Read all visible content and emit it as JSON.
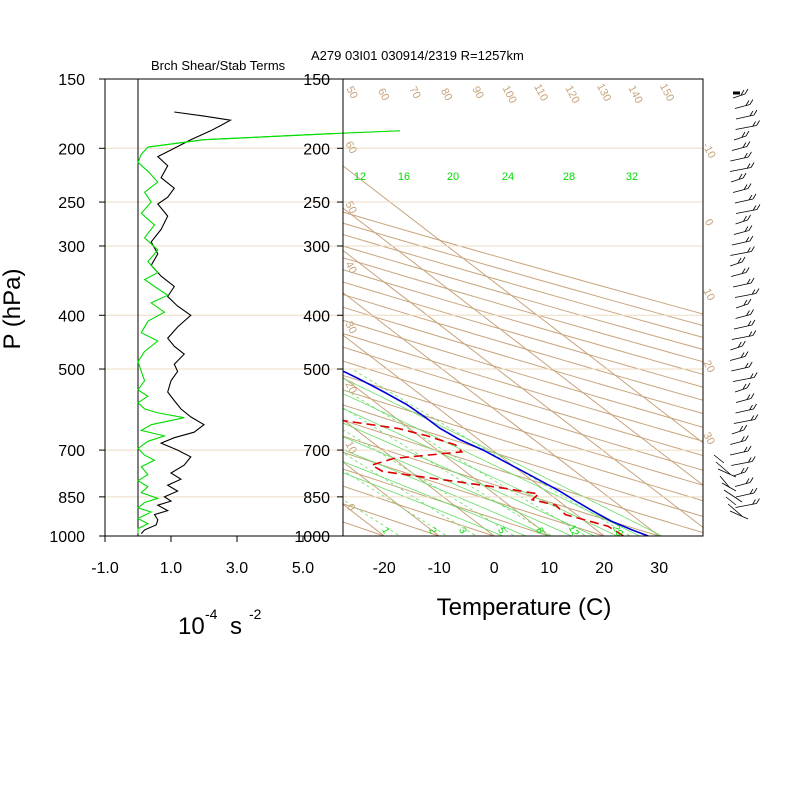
{
  "header": {
    "left_title": "Brch Shear/Stab Terms",
    "right_title": "A279 03I01 030914/2319 R=1257km"
  },
  "colors": {
    "black": "#000000",
    "green": "#00dd00",
    "blue": "#0000dd",
    "red": "#dd0000",
    "tan": "#c8a47c",
    "pale_tan": "#eedcc0",
    "light_green": "#66dd66"
  },
  "chart_data": [
    {
      "type": "line",
      "panel": "left",
      "title": "Brch Shear/Stab Terms",
      "ylabel": "P (hPa)",
      "xlabel_base": "10",
      "xlabel_exp": "-4",
      "xlabel_unit": "s",
      "xlabel_unit_exp": "-2",
      "ylim": [
        1000,
        150
      ],
      "y_scale": "log",
      "xlim": [
        -1.0,
        5.5
      ],
      "x_ticks": [
        "-1.0",
        "1.0",
        "3.0",
        "5.0"
      ],
      "x_tick_values": [
        -1,
        1,
        3,
        5
      ],
      "y_ticks": [
        "150",
        "200",
        "250",
        "300",
        "400",
        "500",
        "700",
        "850",
        "1000"
      ],
      "y_tick_values": [
        150,
        200,
        250,
        300,
        400,
        500,
        700,
        850,
        1000
      ],
      "zero_line": 0,
      "series": [
        {
          "color": "#000000",
          "points": [
            [
              0.1,
              990
            ],
            [
              0.2,
              975
            ],
            [
              0.55,
              955
            ],
            [
              0.6,
              935
            ],
            [
              0.5,
              915
            ],
            [
              0.9,
              900
            ],
            [
              0.6,
              880
            ],
            [
              1.0,
              865
            ],
            [
              0.8,
              850
            ],
            [
              1.2,
              830
            ],
            [
              0.9,
              810
            ],
            [
              1.3,
              790
            ],
            [
              1.0,
              770
            ],
            [
              1.4,
              745
            ],
            [
              1.6,
              720
            ],
            [
              1.2,
              700
            ],
            [
              0.7,
              680
            ],
            [
              1.1,
              665
            ],
            [
              1.7,
              650
            ],
            [
              2.0,
              630
            ],
            [
              1.6,
              610
            ],
            [
              1.3,
              590
            ],
            [
              1.1,
              570
            ],
            [
              0.9,
              550
            ],
            [
              1.0,
              525
            ],
            [
              1.2,
              505
            ],
            [
              1.1,
              490
            ],
            [
              1.4,
              470
            ],
            [
              1.1,
              455
            ],
            [
              0.9,
              440
            ],
            [
              1.2,
              420
            ],
            [
              1.6,
              400
            ],
            [
              1.2,
              385
            ],
            [
              0.9,
              370
            ],
            [
              1.1,
              355
            ],
            [
              0.7,
              340
            ],
            [
              0.4,
              325
            ],
            [
              0.6,
              310
            ],
            [
              0.4,
              295
            ],
            [
              0.7,
              280
            ],
            [
              0.9,
              265
            ],
            [
              0.6,
              252
            ],
            [
              0.9,
              245
            ],
            [
              1.1,
              236
            ],
            [
              0.7,
              226
            ],
            [
              0.9,
              215
            ],
            [
              0.6,
              207
            ],
            [
              1.1,
              200
            ],
            [
              1.6,
              193
            ],
            [
              2.2,
              186
            ],
            [
              2.5,
              182
            ],
            [
              2.8,
              178
            ],
            [
              2.0,
              175
            ],
            [
              1.1,
              172
            ]
          ]
        },
        {
          "color": "#00dd00",
          "points": [
            [
              0.0,
              990
            ],
            [
              0.0,
              970
            ],
            [
              0.3,
              950
            ],
            [
              0.0,
              930
            ],
            [
              0.4,
              905
            ],
            [
              0.0,
              890
            ],
            [
              0.2,
              870
            ],
            [
              0.6,
              855
            ],
            [
              0.1,
              835
            ],
            [
              0.3,
              815
            ],
            [
              0.0,
              795
            ],
            [
              0.3,
              775
            ],
            [
              0.1,
              750
            ],
            [
              0.5,
              730
            ],
            [
              0.2,
              715
            ],
            [
              0.0,
              695
            ],
            [
              0.3,
              675
            ],
            [
              0.8,
              660
            ],
            [
              0.1,
              645
            ],
            [
              0.4,
              630
            ],
            [
              1.4,
              612
            ],
            [
              0.6,
              600
            ],
            [
              0.2,
              590
            ],
            [
              0.0,
              575
            ],
            [
              0.3,
              560
            ],
            [
              0.0,
              545
            ],
            [
              0.2,
              525
            ],
            [
              0.1,
              505
            ],
            [
              0.0,
              485
            ],
            [
              0.2,
              465
            ],
            [
              0.6,
              445
            ],
            [
              0.1,
              430
            ],
            [
              0.3,
              410
            ],
            [
              0.8,
              395
            ],
            [
              0.4,
              380
            ],
            [
              0.9,
              368
            ],
            [
              0.5,
              355
            ],
            [
              0.2,
              345
            ],
            [
              0.6,
              335
            ],
            [
              0.3,
              320
            ],
            [
              0.6,
              305
            ],
            [
              0.2,
              290
            ],
            [
              0.5,
              275
            ],
            [
              0.1,
              262
            ],
            [
              0.4,
              250
            ],
            [
              0.2,
              240
            ],
            [
              0.6,
              230
            ],
            [
              0.3,
              220
            ],
            [
              0.0,
              212
            ],
            [
              0.1,
              205
            ],
            [
              0.3,
              199
            ],
            [
              2.0,
              193
            ],
            [
              6.0,
              188
            ]
          ]
        }
      ]
    },
    {
      "type": "line",
      "panel": "right",
      "subtype": "skew-t log-p",
      "title": "A279 03I01 030914/2319 R=1257km",
      "xlabel": "Temperature (C)",
      "ylim": [
        1000,
        150
      ],
      "y_scale": "log",
      "xlim": [
        -25,
        40
      ],
      "x_ticks": [
        "-20",
        "-10",
        "0",
        "10",
        "20",
        "30"
      ],
      "x_tick_values": [
        -20,
        -10,
        0,
        10,
        20,
        30
      ],
      "y_ticks": [
        "150",
        "200",
        "250",
        "300",
        "400",
        "500",
        "700",
        "850",
        "1000"
      ],
      "y_tick_values": [
        150,
        200,
        250,
        300,
        400,
        500,
        700,
        850,
        1000
      ],
      "background_labels_tan": {
        "top": [
          "50",
          "60",
          "70",
          "80",
          "90",
          "100",
          "110",
          "120",
          "130",
          "140",
          "150"
        ],
        "left": [
          "60",
          "50",
          "40",
          "30",
          "20",
          "10",
          "0"
        ],
        "right": [
          "-10",
          "0",
          "10",
          "20",
          "30"
        ]
      },
      "mixing_ratio_labels_top": [
        "12",
        "16",
        "20",
        "24",
        "28",
        "32"
      ],
      "mixing_ratio_labels_bottom": [
        "1",
        "2",
        "3",
        "5",
        "8",
        "12",
        "20"
      ],
      "series": [
        {
          "color": "#0000dd",
          "style": "solid",
          "points": [
            [
              28.0,
              1000
            ],
            [
              26.5,
              975
            ],
            [
              24.8,
              940
            ],
            [
              23.8,
              900
            ],
            [
              23.2,
              870
            ],
            [
              22.5,
              830
            ],
            [
              21.0,
              780
            ],
            [
              19.5,
              735
            ],
            [
              18.3,
              700
            ],
            [
              16.5,
              670
            ],
            [
              15.6,
              640
            ],
            [
              15.5,
              610
            ],
            [
              15.2,
              580
            ],
            [
              14.0,
              550
            ],
            [
              12.5,
              520
            ],
            [
              10.5,
              490
            ],
            [
              9.0,
              460
            ],
            [
              7.5,
              430
            ],
            [
              5.8,
              400
            ],
            [
              4.2,
              375
            ],
            [
              3.0,
              350
            ],
            [
              1.0,
              325
            ],
            [
              -1.0,
              300
            ],
            [
              -3.0,
              280
            ],
            [
              -5.5,
              260
            ],
            [
              -8.0,
              240
            ],
            [
              -11.0,
              220
            ],
            [
              -14.0,
              205
            ],
            [
              -16.5,
              195
            ],
            [
              -19.5,
              185
            ],
            [
              -22.5,
              180
            ],
            [
              -24.0,
              176
            ],
            [
              -25.5,
              171
            ],
            [
              -27.0,
              167
            ]
          ]
        },
        {
          "color": "#dd0000",
          "style": "dashed",
          "points": [
            [
              23.5,
              1000
            ],
            [
              23.0,
              960
            ],
            [
              18.0,
              915
            ],
            [
              18.5,
              880
            ],
            [
              15.5,
              860
            ],
            [
              18.0,
              840
            ],
            [
              13.0,
              820
            ],
            [
              5.0,
              795
            ],
            [
              -5.0,
              765
            ],
            [
              -5.5,
              745
            ],
            [
              0.0,
              725
            ],
            [
              14.0,
              705
            ],
            [
              14.5,
              685
            ],
            [
              11.5,
              660
            ],
            [
              8.0,
              640
            ],
            [
              -2.0,
              615
            ],
            [
              -2.5,
              595
            ],
            [
              -12.0,
              570
            ],
            [
              -9.0,
              550
            ],
            [
              -4.5,
              535
            ],
            [
              2.0,
              515
            ],
            [
              6.0,
              495
            ],
            [
              3.0,
              475
            ],
            [
              -1.0,
              450
            ],
            [
              -3.0,
              425
            ],
            [
              -8.0,
              408
            ],
            [
              -2.0,
              395
            ],
            [
              -14.0,
              382
            ],
            [
              -22.0,
              368
            ],
            [
              -21.0,
              355
            ],
            [
              -17.5,
              340
            ],
            [
              -10.0,
              322
            ],
            [
              -5.0,
              305
            ],
            [
              -15.0,
              290
            ],
            [
              -21.0,
              270
            ],
            [
              -25.0,
              255
            ],
            [
              -26.0,
              245
            ],
            [
              -28.0,
              232
            ],
            [
              -32.0,
              222
            ],
            [
              -35.0,
              212
            ],
            [
              -40.0,
              202
            ]
          ]
        }
      ]
    }
  ]
}
